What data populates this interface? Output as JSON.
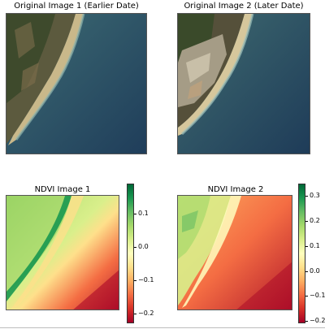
{
  "figure": {
    "titles": {
      "orig1": "Original Image 1 (Earlier Date)",
      "orig2": "Original Image 2 (Later Date)",
      "ndvi1": "NDVI Image 1",
      "ndvi2": "NDVI Image 2"
    }
  },
  "chart_data": [
    {
      "type": "heatmap",
      "title": "NDVI Image 1",
      "colormap": "RdYlGn",
      "vlim": [
        -0.23,
        0.19
      ],
      "colorbar_ticks": [
        0.1,
        0.0,
        -0.1,
        -0.2
      ],
      "colorbar_tick_labels": [
        "0.1",
        "0.0",
        "−0.1",
        "−0.2"
      ]
    },
    {
      "type": "heatmap",
      "title": "NDVI Image 2",
      "colormap": "RdYlGn",
      "vlim": [
        -0.21,
        0.35
      ],
      "colorbar_ticks": [
        0.3,
        0.2,
        0.1,
        0.0,
        -0.1,
        -0.2
      ],
      "colorbar_tick_labels": [
        "0.3",
        "0.2",
        "0.1",
        "0.0",
        "−0.1",
        "−0.2"
      ]
    }
  ]
}
